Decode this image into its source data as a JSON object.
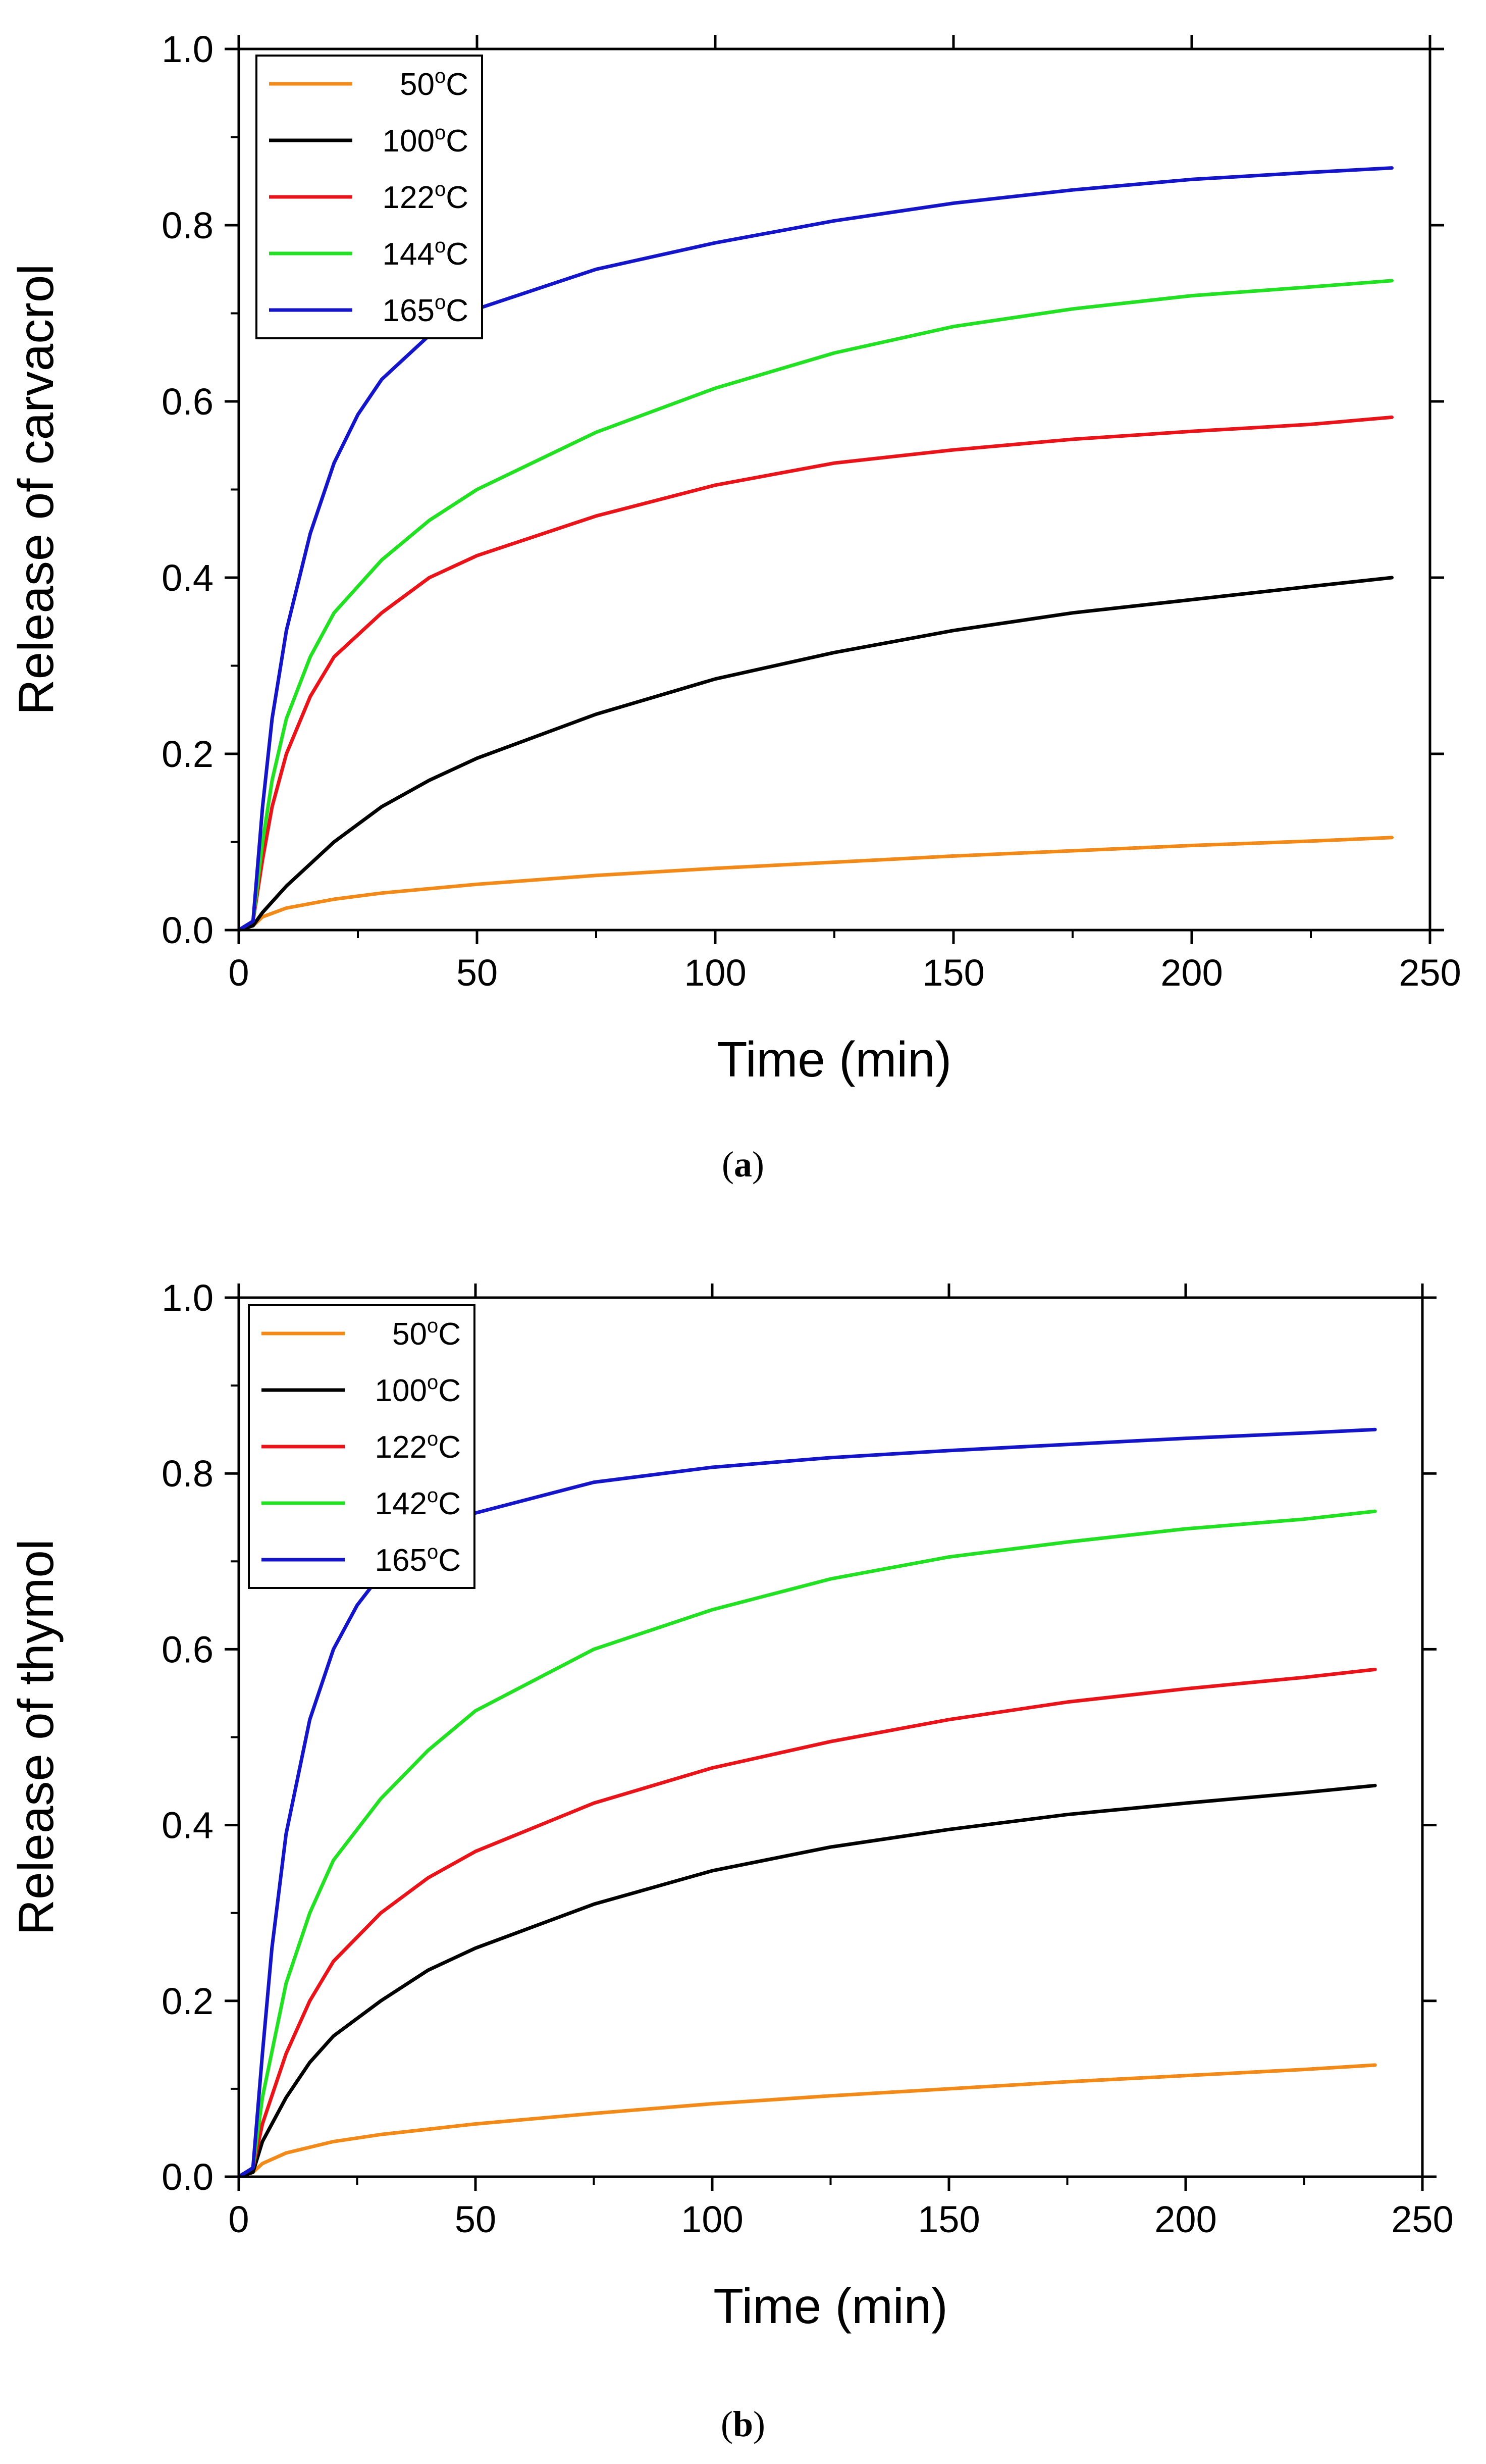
{
  "chart_data": [
    {
      "type": "line",
      "caption": "a",
      "xlabel": "Time (min)",
      "ylabel": "Release of carvacrol",
      "xlim": [
        0,
        250
      ],
      "ylim": [
        0,
        1.0
      ],
      "xticks": [
        "0",
        "50",
        "100",
        "150",
        "200",
        "250"
      ],
      "yticks": [
        "0.0",
        "0.2",
        "0.4",
        "0.6",
        "0.8",
        "1.0"
      ],
      "legend_position": "top-left",
      "series": [
        {
          "name": "50°C",
          "label_base": "50",
          "label_sup": "o",
          "label_unit": "C",
          "color": "#f28a1a",
          "points": [
            [
              0,
              0
            ],
            [
              3,
              0.005
            ],
            [
              5,
              0.015
            ],
            [
              10,
              0.025
            ],
            [
              20,
              0.035
            ],
            [
              30,
              0.042
            ],
            [
              50,
              0.052
            ],
            [
              75,
              0.062
            ],
            [
              100,
              0.07
            ],
            [
              125,
              0.077
            ],
            [
              150,
              0.084
            ],
            [
              175,
              0.09
            ],
            [
              200,
              0.096
            ],
            [
              225,
              0.101
            ],
            [
              242,
              0.105
            ]
          ]
        },
        {
          "name": "100°C",
          "label_base": "100",
          "label_sup": "o",
          "label_unit": "C",
          "color": "#000000",
          "points": [
            [
              0,
              0
            ],
            [
              3,
              0.005
            ],
            [
              5,
              0.02
            ],
            [
              10,
              0.05
            ],
            [
              20,
              0.1
            ],
            [
              30,
              0.14
            ],
            [
              40,
              0.17
            ],
            [
              50,
              0.195
            ],
            [
              75,
              0.245
            ],
            [
              100,
              0.285
            ],
            [
              125,
              0.315
            ],
            [
              150,
              0.34
            ],
            [
              175,
              0.36
            ],
            [
              200,
              0.375
            ],
            [
              225,
              0.39
            ],
            [
              242,
              0.4
            ]
          ]
        },
        {
          "name": "122°C",
          "label_base": "122",
          "label_sup": "o",
          "label_unit": "C",
          "color": "#e8141a",
          "points": [
            [
              0,
              0
            ],
            [
              3,
              0.01
            ],
            [
              5,
              0.08
            ],
            [
              7,
              0.14
            ],
            [
              10,
              0.2
            ],
            [
              15,
              0.265
            ],
            [
              20,
              0.31
            ],
            [
              30,
              0.36
            ],
            [
              40,
              0.4
            ],
            [
              50,
              0.425
            ],
            [
              75,
              0.47
            ],
            [
              100,
              0.505
            ],
            [
              125,
              0.53
            ],
            [
              150,
              0.545
            ],
            [
              175,
              0.557
            ],
            [
              200,
              0.566
            ],
            [
              225,
              0.574
            ],
            [
              242,
              0.582
            ]
          ]
        },
        {
          "name": "144°C",
          "label_base": "144",
          "label_sup": "o",
          "label_unit": "C",
          "color": "#22e022",
          "points": [
            [
              0,
              0
            ],
            [
              3,
              0.01
            ],
            [
              5,
              0.1
            ],
            [
              7,
              0.17
            ],
            [
              10,
              0.24
            ],
            [
              15,
              0.31
            ],
            [
              20,
              0.36
            ],
            [
              30,
              0.42
            ],
            [
              40,
              0.465
            ],
            [
              50,
              0.5
            ],
            [
              75,
              0.565
            ],
            [
              100,
              0.615
            ],
            [
              125,
              0.655
            ],
            [
              150,
              0.685
            ],
            [
              175,
              0.705
            ],
            [
              200,
              0.72
            ],
            [
              225,
              0.73
            ],
            [
              242,
              0.737
            ]
          ]
        },
        {
          "name": "165°C",
          "label_base": "165",
          "label_sup": "o",
          "label_unit": "C",
          "color": "#1414c8",
          "points": [
            [
              0,
              0
            ],
            [
              3,
              0.01
            ],
            [
              5,
              0.14
            ],
            [
              7,
              0.24
            ],
            [
              10,
              0.34
            ],
            [
              15,
              0.45
            ],
            [
              20,
              0.53
            ],
            [
              25,
              0.585
            ],
            [
              30,
              0.625
            ],
            [
              40,
              0.675
            ],
            [
              50,
              0.705
            ],
            [
              75,
              0.75
            ],
            [
              100,
              0.78
            ],
            [
              125,
              0.805
            ],
            [
              150,
              0.825
            ],
            [
              175,
              0.84
            ],
            [
              200,
              0.852
            ],
            [
              225,
              0.86
            ],
            [
              242,
              0.865
            ]
          ]
        }
      ]
    },
    {
      "type": "line",
      "caption": "b",
      "xlabel": "Time (min)",
      "ylabel": "Release of thymol",
      "xlim": [
        0,
        250
      ],
      "ylim": [
        0,
        1.0
      ],
      "xticks": [
        "0",
        "50",
        "100",
        "150",
        "200",
        "250"
      ],
      "yticks": [
        "0.0",
        "0.2",
        "0.4",
        "0.6",
        "0.8",
        "1.0"
      ],
      "legend_position": "top-left",
      "series": [
        {
          "name": "50°C",
          "label_base": "50",
          "label_sup": "o",
          "label_unit": "C",
          "color": "#f28a1a",
          "points": [
            [
              0,
              0
            ],
            [
              3,
              0.005
            ],
            [
              5,
              0.015
            ],
            [
              10,
              0.027
            ],
            [
              20,
              0.04
            ],
            [
              30,
              0.048
            ],
            [
              50,
              0.06
            ],
            [
              75,
              0.072
            ],
            [
              100,
              0.083
            ],
            [
              125,
              0.092
            ],
            [
              150,
              0.1
            ],
            [
              175,
              0.108
            ],
            [
              200,
              0.115
            ],
            [
              225,
              0.122
            ],
            [
              240,
              0.127
            ]
          ]
        },
        {
          "name": "100°C",
          "label_base": "100",
          "label_sup": "o",
          "label_unit": "C",
          "color": "#000000",
          "points": [
            [
              0,
              0
            ],
            [
              3,
              0.005
            ],
            [
              5,
              0.04
            ],
            [
              10,
              0.09
            ],
            [
              15,
              0.13
            ],
            [
              20,
              0.16
            ],
            [
              30,
              0.2
            ],
            [
              40,
              0.235
            ],
            [
              50,
              0.26
            ],
            [
              75,
              0.31
            ],
            [
              100,
              0.348
            ],
            [
              125,
              0.375
            ],
            [
              150,
              0.395
            ],
            [
              175,
              0.412
            ],
            [
              200,
              0.425
            ],
            [
              225,
              0.437
            ],
            [
              240,
              0.445
            ]
          ]
        },
        {
          "name": "122°C",
          "label_base": "122",
          "label_sup": "o",
          "label_unit": "C",
          "color": "#e8141a",
          "points": [
            [
              0,
              0
            ],
            [
              3,
              0.01
            ],
            [
              5,
              0.06
            ],
            [
              10,
              0.14
            ],
            [
              15,
              0.2
            ],
            [
              20,
              0.245
            ],
            [
              30,
              0.3
            ],
            [
              40,
              0.34
            ],
            [
              50,
              0.37
            ],
            [
              75,
              0.425
            ],
            [
              100,
              0.465
            ],
            [
              125,
              0.495
            ],
            [
              150,
              0.52
            ],
            [
              175,
              0.54
            ],
            [
              200,
              0.555
            ],
            [
              225,
              0.568
            ],
            [
              240,
              0.577
            ]
          ]
        },
        {
          "name": "142°C",
          "label_base": "142",
          "label_sup": "o",
          "label_unit": "C",
          "color": "#22e022",
          "points": [
            [
              0,
              0
            ],
            [
              3,
              0.01
            ],
            [
              5,
              0.09
            ],
            [
              10,
              0.22
            ],
            [
              15,
              0.3
            ],
            [
              20,
              0.36
            ],
            [
              30,
              0.43
            ],
            [
              40,
              0.485
            ],
            [
              50,
              0.53
            ],
            [
              75,
              0.6
            ],
            [
              100,
              0.645
            ],
            [
              125,
              0.68
            ],
            [
              150,
              0.705
            ],
            [
              175,
              0.722
            ],
            [
              200,
              0.737
            ],
            [
              225,
              0.748
            ],
            [
              240,
              0.757
            ]
          ]
        },
        {
          "name": "165°C",
          "label_base": "165",
          "label_sup": "o",
          "label_unit": "C",
          "color": "#1414c8",
          "points": [
            [
              0,
              0
            ],
            [
              3,
              0.01
            ],
            [
              5,
              0.14
            ],
            [
              7,
              0.26
            ],
            [
              10,
              0.39
            ],
            [
              15,
              0.52
            ],
            [
              20,
              0.6
            ],
            [
              25,
              0.65
            ],
            [
              30,
              0.685
            ],
            [
              40,
              0.73
            ],
            [
              50,
              0.755
            ],
            [
              75,
              0.79
            ],
            [
              100,
              0.807
            ],
            [
              125,
              0.818
            ],
            [
              150,
              0.826
            ],
            [
              175,
              0.833
            ],
            [
              200,
              0.84
            ],
            [
              225,
              0.846
            ],
            [
              240,
              0.85
            ]
          ]
        }
      ]
    }
  ]
}
